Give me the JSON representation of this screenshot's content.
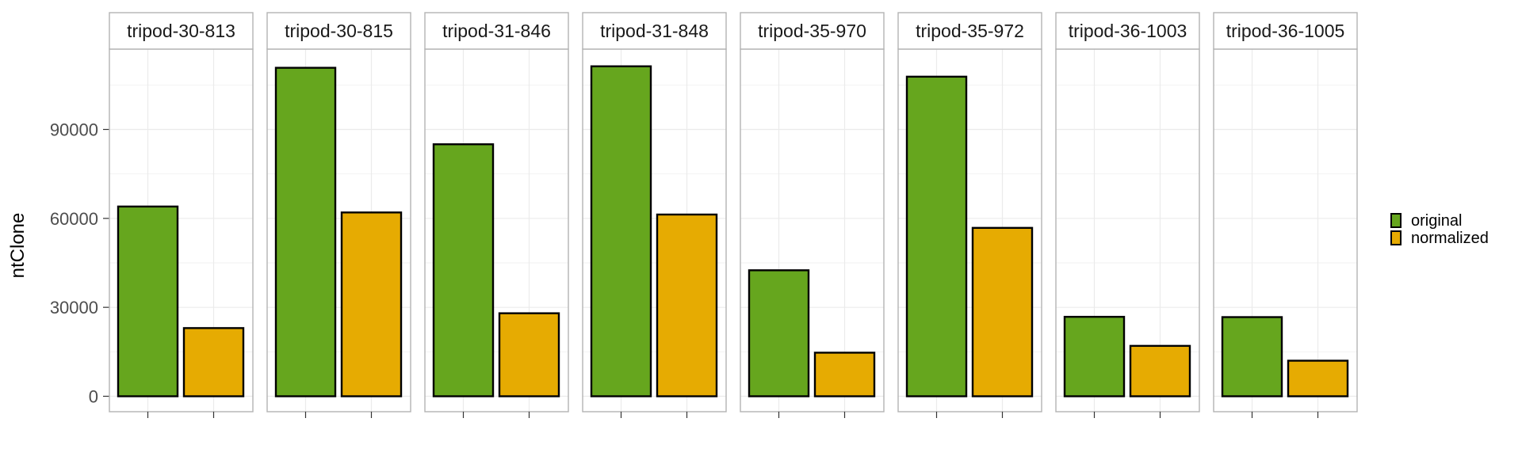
{
  "chart_data": {
    "type": "bar",
    "facet_labels": [
      "tripod-30-813",
      "tripod-30-815",
      "tripod-31-846",
      "tripod-31-848",
      "tripod-35-970",
      "tripod-35-972",
      "tripod-36-1003",
      "tripod-36-1005"
    ],
    "ylabel": "ntClone",
    "xlabel": "",
    "ylim": [
      0,
      122000
    ],
    "y_ticks": [
      0,
      30000,
      60000,
      90000
    ],
    "y_tick_labels": [
      "0",
      "30000",
      "60000",
      "90000"
    ],
    "grid": true,
    "legend_position": "right",
    "series": [
      {
        "name": "original",
        "color": "#66a61e",
        "values": [
          64000,
          110800,
          85000,
          111300,
          42500,
          107800,
          26800,
          26700
        ]
      },
      {
        "name": "normalized",
        "color": "#e6ab02",
        "values": [
          23000,
          62000,
          28000,
          61300,
          14700,
          56800,
          17000,
          12000
        ]
      }
    ]
  }
}
